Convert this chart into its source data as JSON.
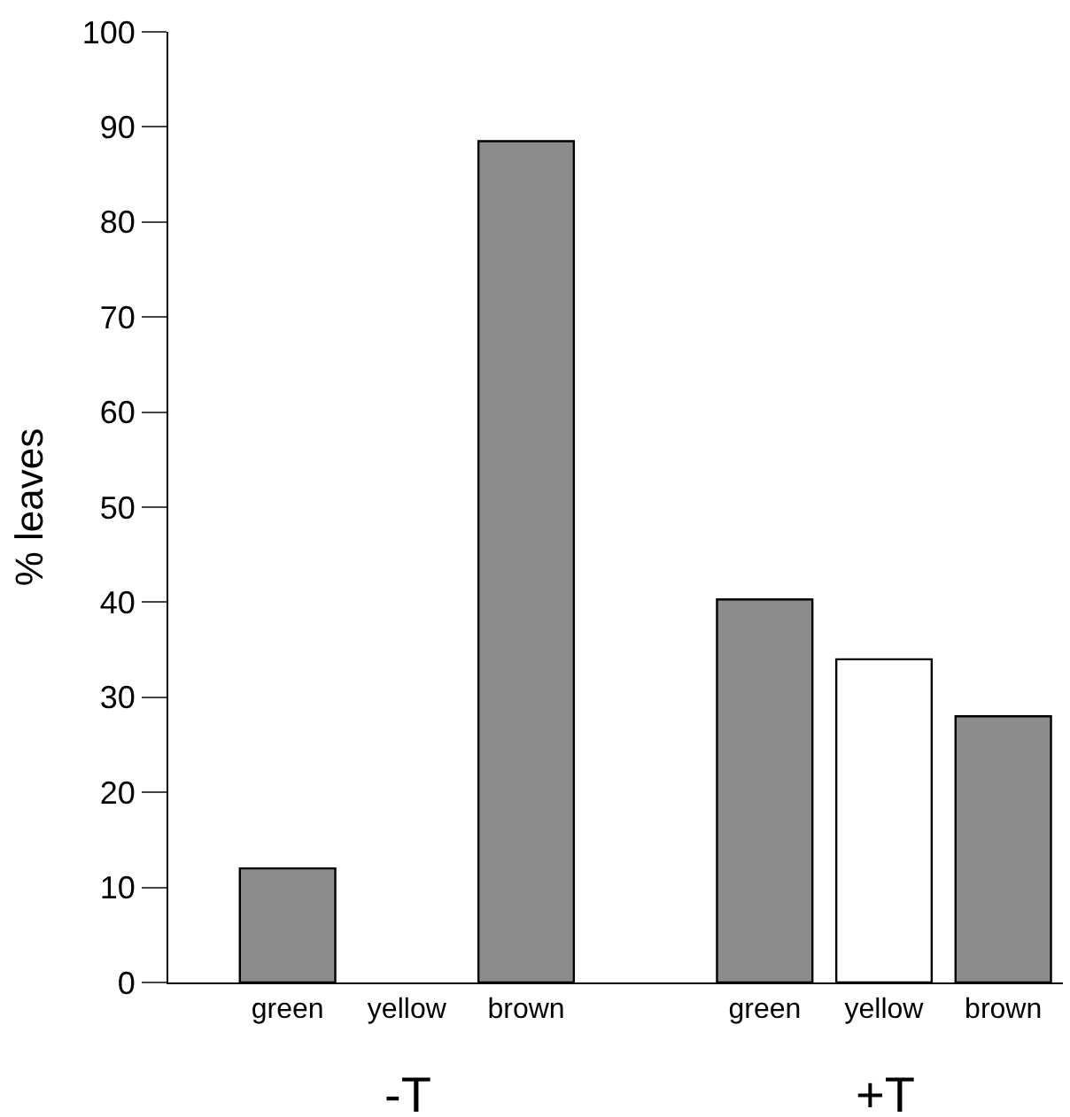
{
  "chart_data": {
    "type": "bar",
    "ylabel": "% leaves",
    "categories": [
      "green",
      "yellow",
      "brown",
      null,
      "green",
      "yellow",
      "brown"
    ],
    "values": [
      12,
      null,
      88.5,
      null,
      40.3,
      34,
      28
    ],
    "colors": [
      "#8c8c8c",
      "#ffffff",
      "#8c8c8c",
      "#ffffff",
      "#8c8c8c",
      "#ffffff",
      "#8c8c8c"
    ],
    "ylim": [
      0,
      100
    ],
    "yticks": [
      0,
      10,
      20,
      30,
      40,
      50,
      60,
      70,
      80,
      90,
      100
    ],
    "annotations": [
      "-T",
      "+T"
    ]
  }
}
